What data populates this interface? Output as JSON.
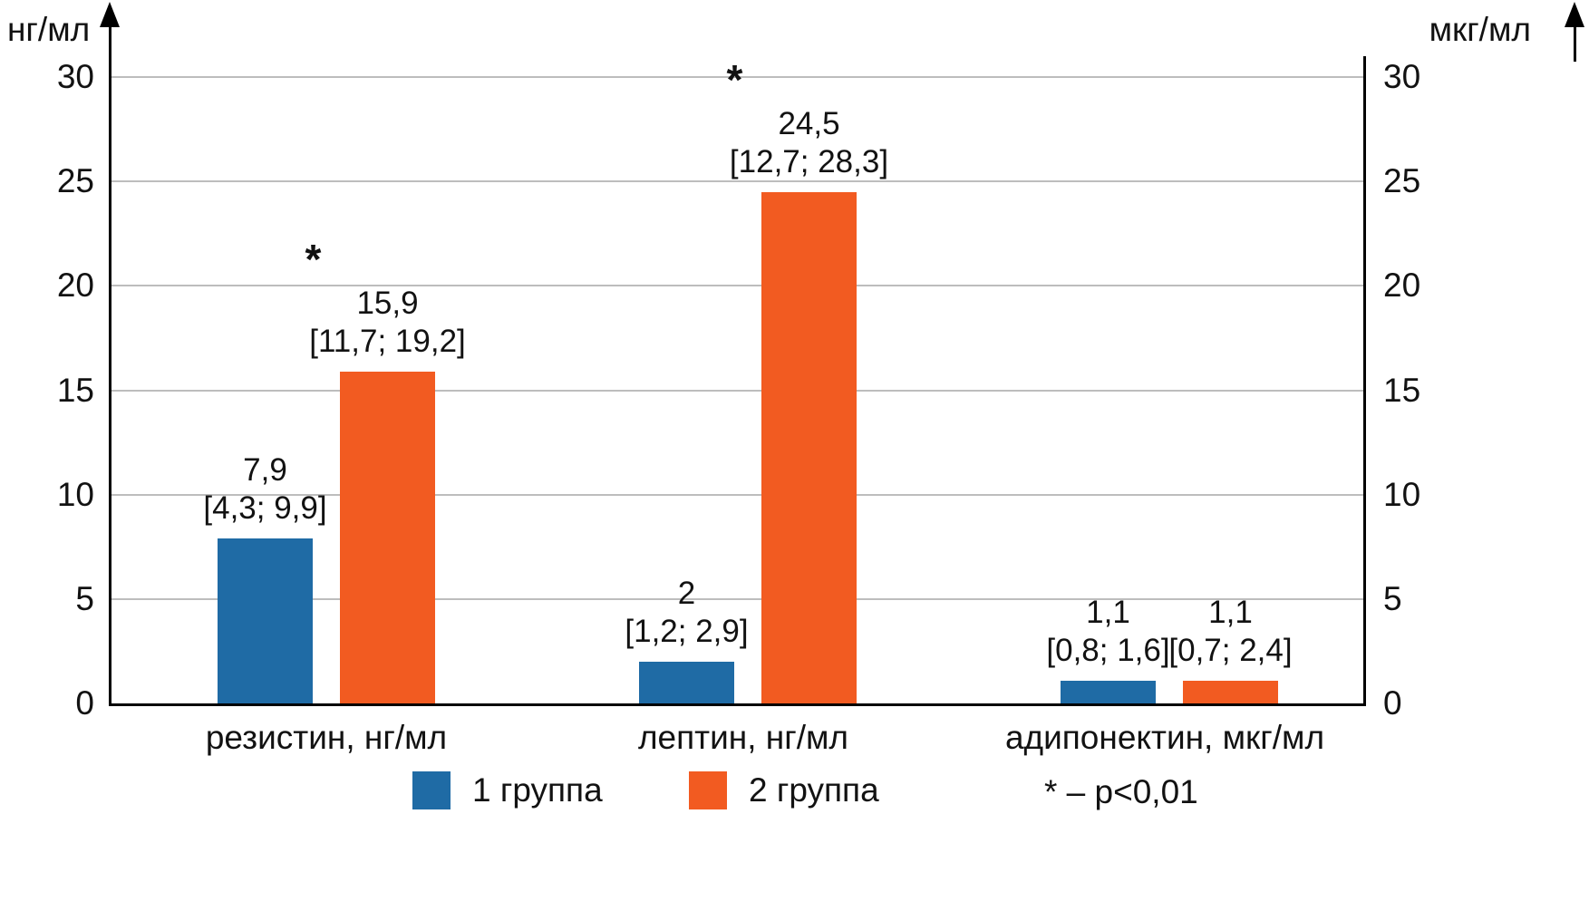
{
  "chart_data": {
    "type": "bar",
    "title": "",
    "left_axis_label": "нг/мл",
    "right_axis_label": "мкг/мл",
    "ylim": [
      0,
      30
    ],
    "yticks": [
      0,
      5,
      10,
      15,
      20,
      25,
      30
    ],
    "grid": true,
    "legend_position": "bottom",
    "categories": [
      "резистин, нг/мл",
      "лептин, нг/мл",
      "адипонектин, мкг/мл"
    ],
    "series": [
      {
        "name": "1 группа",
        "color": "#1F6BA5",
        "values": [
          7.9,
          2,
          1.1
        ],
        "value_labels": [
          "7,9",
          "2",
          "1,1"
        ],
        "ci_labels": [
          "[4,3; 9,9]",
          "[1,2; 2,9]",
          "[0,8; 1,6]"
        ],
        "significant": [
          false,
          false,
          false
        ]
      },
      {
        "name": "2 группа",
        "color": "#F25B21",
        "values": [
          15.9,
          24.5,
          1.1
        ],
        "value_labels": [
          "15,9",
          "24,5",
          "1,1"
        ],
        "ci_labels": [
          "[11,7; 19,2]",
          "[12,7; 28,3]",
          "[0,7; 2,4]"
        ],
        "significant": [
          true,
          true,
          false
        ]
      }
    ],
    "significance_marker": "*",
    "legend": {
      "items": [
        {
          "label": "1 группа",
          "color": "#1F6BA5"
        },
        {
          "label": "2 группа",
          "color": "#F25B21"
        }
      ],
      "note": "* – p<0,01"
    }
  }
}
